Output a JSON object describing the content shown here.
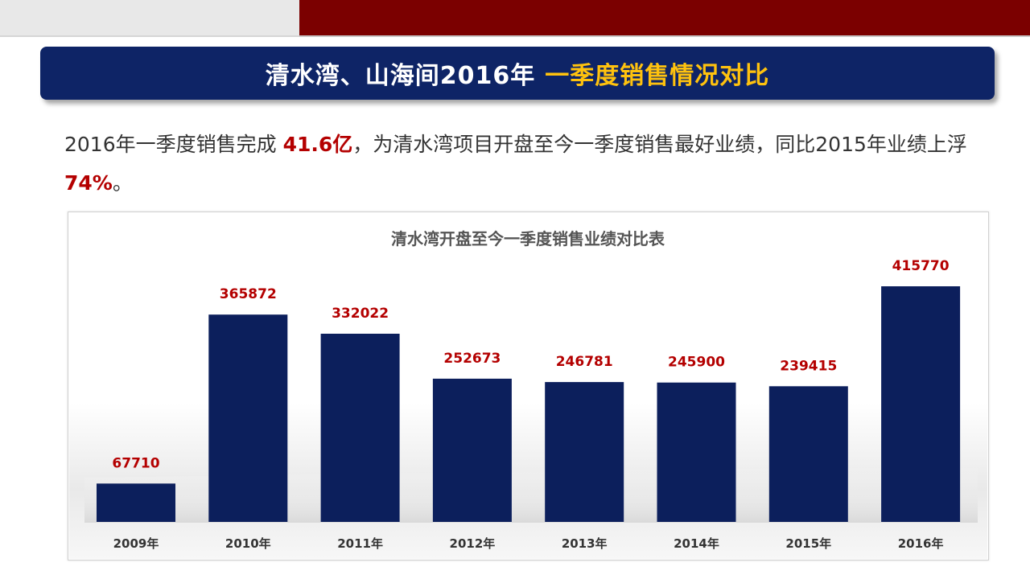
{
  "header": {
    "title_white": "清水湾、山海间2016年",
    "title_yellow": "一季度销售情况对比"
  },
  "summary": {
    "part1": "2016年一季度销售完成 ",
    "highlight1": "41.6亿",
    "part2": "，为清水湾项目开盘至今一季度销售最好业绩，同比2015年业绩上浮 ",
    "highlight2": "74%",
    "part3": "。"
  },
  "colors": {
    "bar": "#0c1f5c",
    "title_banner": "#0e2466",
    "title_accent": "#ffc20e",
    "highlight": "#b40000",
    "top_strip_red": "#7b0000"
  },
  "chart_data": {
    "type": "bar",
    "title": "清水湾开盘至今一季度销售业绩对比表",
    "categories": [
      "2009年",
      "2010年",
      "2011年",
      "2012年",
      "2013年",
      "2014年",
      "2015年",
      "2016年"
    ],
    "values": [
      67710,
      365872,
      332022,
      252673,
      246781,
      245900,
      239415,
      415770
    ],
    "ylim": [
      0,
      415770
    ],
    "grid": false,
    "legend": "none",
    "data_labels": true
  }
}
